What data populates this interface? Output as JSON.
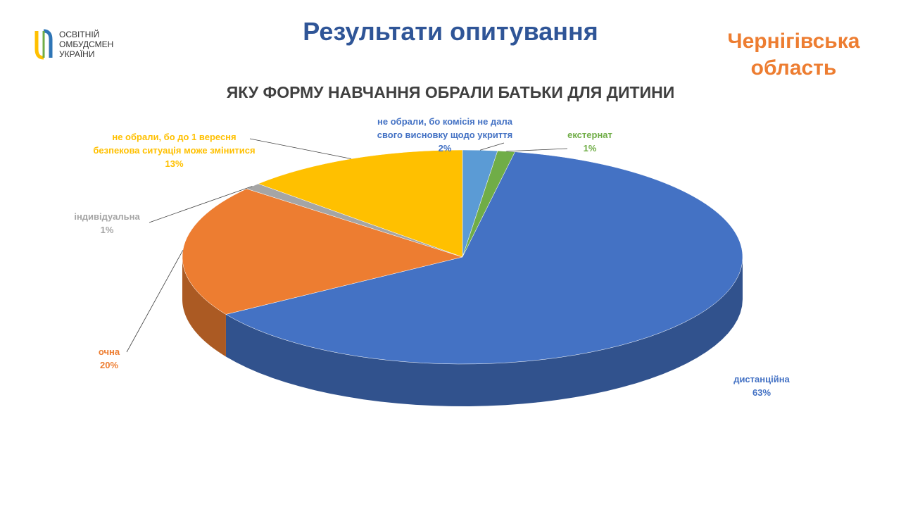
{
  "page": {
    "logo_lines": [
      "ОСВІТНІЙ",
      "ОМБУДСМЕН",
      "УКРАЇНИ"
    ],
    "title": "Результати опитування",
    "region": "Чернігівська область"
  },
  "chart_data": {
    "type": "pie",
    "title": "ЯКУ ФОРМУ НАВЧАННЯ ОБРАЛИ БАТЬКИ ДЛЯ ДИТИНИ",
    "categories": [
      "не обрали, бо комісія не дала свого висновку щодо укриття",
      "екстернат",
      "дистанційна",
      "очна",
      "індивідуальна",
      "не обрали, бо до 1 вересня безпекова ситуація може змінитися"
    ],
    "values": [
      2,
      1,
      63,
      20,
      1,
      13
    ],
    "value_labels": [
      "2%",
      "1%",
      "63%",
      "20%",
      "1%",
      "13%"
    ],
    "colors": [
      "#5b9bd5",
      "#70ad47",
      "#4472c4",
      "#ed7d31",
      "#a5a5a5",
      "#ffc000"
    ]
  }
}
